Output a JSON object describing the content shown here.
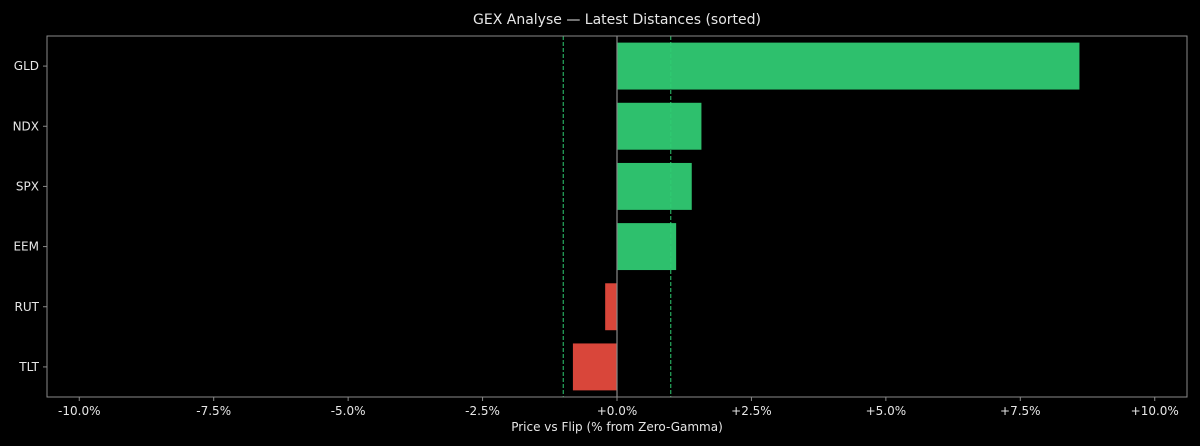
{
  "chart_data": {
    "type": "bar",
    "orientation": "horizontal",
    "title": "GEX Analyse — Latest Distances (sorted)",
    "xlabel": "Price vs Flip (% from Zero-Gamma)",
    "ylabel": "",
    "xlim": [
      -10.6,
      10.6
    ],
    "x_ticks": [
      -10.0,
      -7.5,
      -5.0,
      -2.5,
      0.0,
      2.5,
      5.0,
      7.5,
      10.0
    ],
    "x_tick_labels": [
      "-10.0%",
      "-7.5%",
      "-5.0%",
      "-2.5%",
      "+0.0%",
      "+2.5%",
      "+5.0%",
      "+7.5%",
      "+10.0%"
    ],
    "categories": [
      "GLD",
      "NDX",
      "SPX",
      "EEM",
      "RUT",
      "TLT"
    ],
    "values": [
      8.6,
      1.57,
      1.39,
      1.1,
      -0.22,
      -0.82
    ],
    "reference_lines": [
      {
        "x": -1.0,
        "style": "dashed",
        "color": "#2ecc71"
      },
      {
        "x": 1.0,
        "style": "dashed",
        "color": "#2ecc71"
      },
      {
        "x": 0.0,
        "style": "solid",
        "color": "#888888"
      }
    ],
    "grid": false,
    "legend": "none"
  },
  "colors": {
    "background": "#000000",
    "positive_bar": "#2ec06d",
    "negative_bar": "#d9463a",
    "axis": "#8a8a8a",
    "text": "#e6e6e6",
    "threshold_line": "#2ecc71",
    "zero_line": "#888888"
  }
}
